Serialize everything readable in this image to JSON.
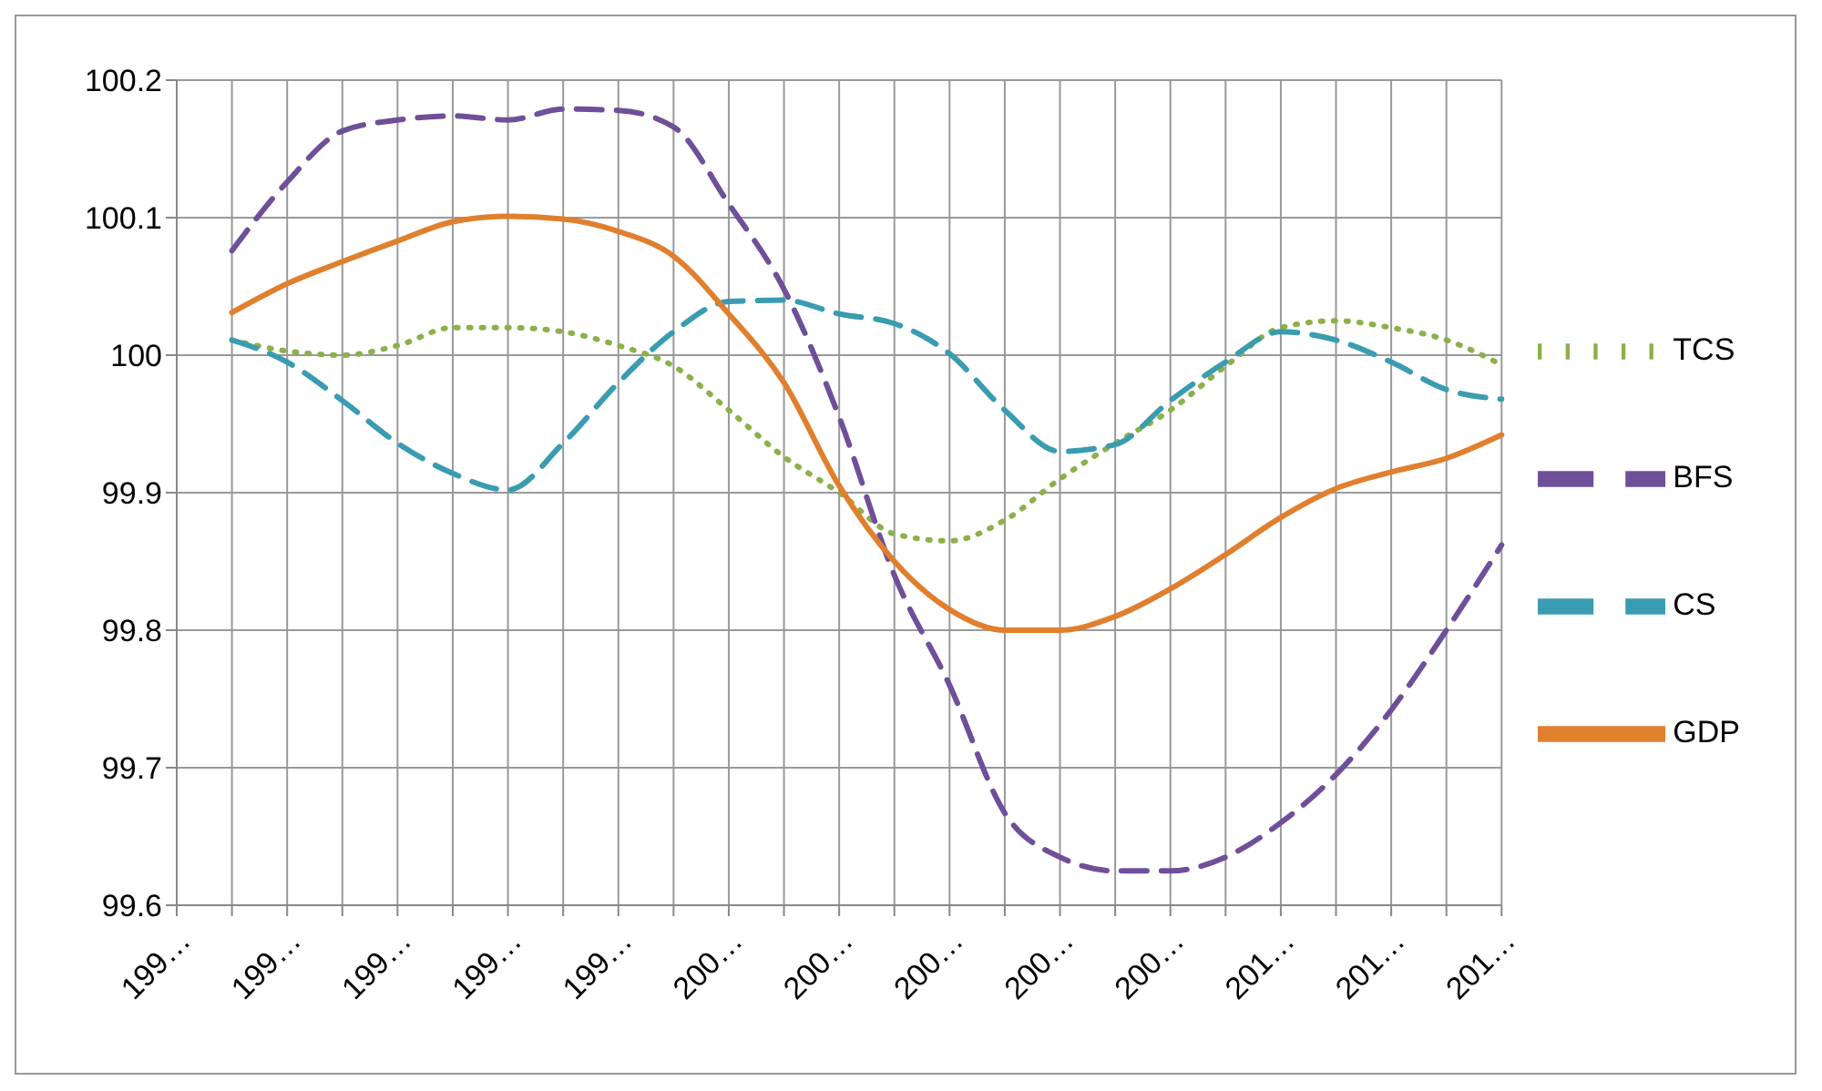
{
  "chart_data": {
    "type": "line",
    "categories": [
      "199…",
      null,
      "199…",
      null,
      "199…",
      null,
      "199…",
      null,
      "199…",
      null,
      "200…",
      null,
      "200…",
      null,
      "200…",
      null,
      "200…",
      null,
      "200…",
      null,
      "201…",
      null,
      "201…",
      null,
      "201…"
    ],
    "ylim": [
      99.6,
      100.2
    ],
    "yticks": [
      99.6,
      99.7,
      99.8,
      99.9,
      100,
      100.1,
      100.2
    ],
    "grid": true,
    "legend": "right",
    "marker": "none",
    "series": [
      {
        "name": "TCS",
        "color": "#8cb04a",
        "line_style": "dotted",
        "values": [
          null,
          100.011,
          100.003,
          100.0,
          100.007,
          100.02,
          100.02,
          100.017,
          100.007,
          99.992,
          99.96,
          99.926,
          99.9,
          99.87,
          99.865,
          99.88,
          99.91,
          99.936,
          99.96,
          99.992,
          100.02,
          100.025,
          100.02,
          100.011,
          99.993
        ]
      },
      {
        "name": "BFS",
        "color": "#6f4f99",
        "line_style": "dashed",
        "values": [
          null,
          100.076,
          100.126,
          100.163,
          100.171,
          100.174,
          100.171,
          100.179,
          100.178,
          100.166,
          100.11,
          100.048,
          99.955,
          99.84,
          99.76,
          99.667,
          99.635,
          99.625,
          99.625,
          99.635,
          99.66,
          99.695,
          99.742,
          99.8,
          99.862
        ]
      },
      {
        "name": "CS",
        "color": "#3a9cb0",
        "line_style": "dashed",
        "values": [
          null,
          100.011,
          99.995,
          99.967,
          99.936,
          99.914,
          99.902,
          99.936,
          99.98,
          100.017,
          100.039,
          100.04,
          100.03,
          100.023,
          100.001,
          99.96,
          99.93,
          99.935,
          99.967,
          99.995,
          100.017,
          100.011,
          99.995,
          99.975,
          99.968
        ]
      },
      {
        "name": "GDP",
        "color": "#e07f2e",
        "line_style": "solid",
        "values": [
          null,
          100.031,
          100.052,
          100.068,
          100.083,
          100.097,
          100.101,
          100.099,
          100.09,
          100.072,
          100.03,
          99.98,
          99.905,
          99.85,
          99.815,
          99.8,
          99.8,
          99.81,
          99.83,
          99.855,
          99.882,
          99.903,
          99.915,
          99.925,
          99.942
        ]
      }
    ]
  }
}
